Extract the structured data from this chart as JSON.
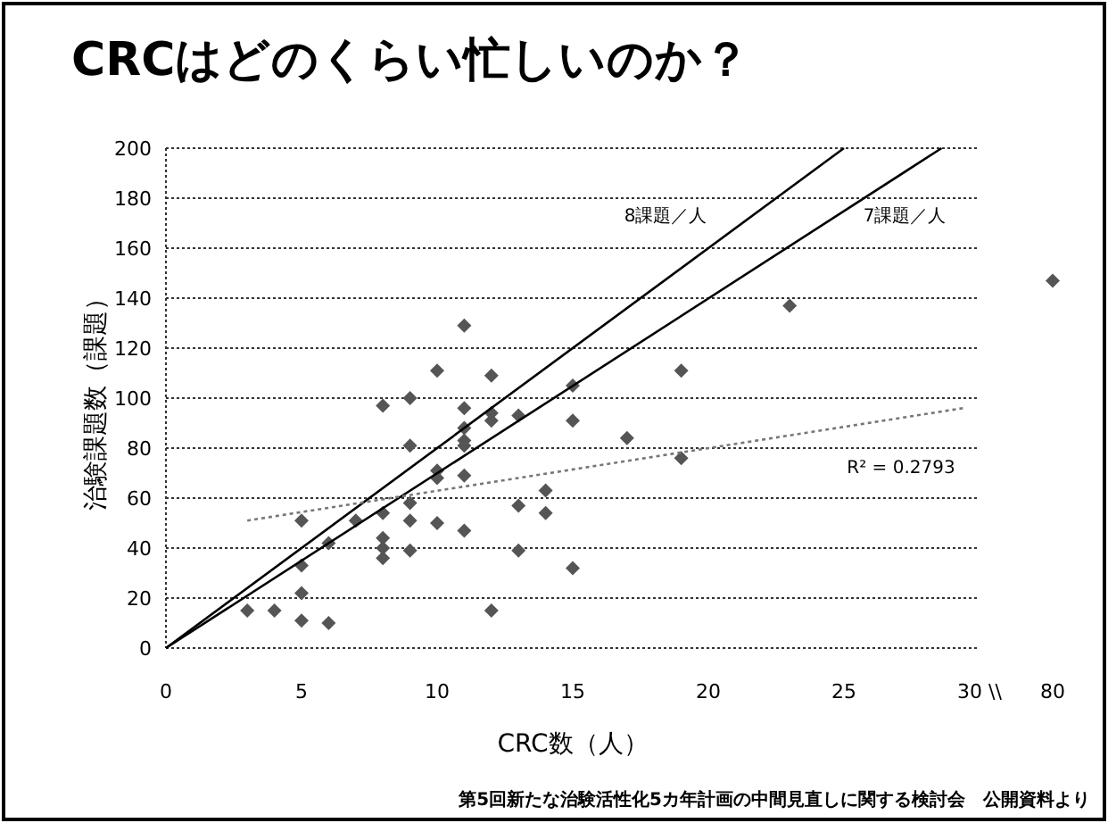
{
  "chart_data": [
    {
      "type": "scatter",
      "title": "CRCはどのくらい忙しいのか？",
      "xlabel": "CRC数（人）",
      "ylabel": "治験課題数（課題）",
      "xlim": [
        0,
        30
      ],
      "xticks": [
        0,
        5,
        10,
        15,
        20,
        25,
        {
          "value": 30,
          "label": "30 \\\\"
        }
      ],
      "ylim": [
        0,
        200
      ],
      "yticks": [
        0,
        20,
        40,
        60,
        80,
        100,
        120,
        140,
        160,
        180,
        200
      ],
      "grid": "y",
      "marker": "diamond",
      "series": [
        {
          "color": "#555555",
          "x": [
            3,
            4,
            5,
            6,
            5,
            5,
            5,
            6,
            7,
            8,
            8,
            8,
            8,
            9,
            9,
            9,
            10,
            10,
            10,
            11,
            11,
            12,
            13,
            13,
            14,
            14,
            15,
            8,
            9,
            10,
            11,
            12,
            9,
            11,
            11,
            11,
            11,
            12,
            12,
            13,
            15,
            15,
            17,
            19,
            19,
            23
          ],
          "values": [
            15,
            15,
            11,
            10,
            22,
            33,
            51,
            42,
            51,
            54,
            44,
            40,
            36,
            39,
            51,
            58,
            50,
            68,
            71,
            47,
            69,
            15,
            57,
            39,
            63,
            54,
            32,
            97,
            100,
            111,
            129,
            109,
            81,
            96,
            88,
            83,
            81,
            94,
            91,
            93,
            105,
            91,
            84,
            111,
            76,
            137
          ]
        },
        {
          "type": "line",
          "color": "#000000",
          "marker": "none",
          "line_style": "solid",
          "x": [
            0,
            25
          ],
          "values": [
            0,
            200
          ]
        },
        {
          "type": "line",
          "color": "#000000",
          "marker": "none",
          "line_style": "solid",
          "x": [
            0,
            28.6
          ],
          "values": [
            0,
            200
          ]
        },
        {
          "type": "line",
          "color": "#777777",
          "marker": "none",
          "line_style": "dotted",
          "x": [
            3,
            29.4
          ],
          "values": [
            51,
            96
          ]
        }
      ],
      "annotations": [
        "8課題／人",
        "7課題／人",
        "R² = 0.2793",
        "第5回新たな治験活性化5カ年計画の中間見直しに関する検討会　公開資料より"
      ]
    },
    {
      "type": "scatter",
      "categories": [
        "80"
      ],
      "ylim": [
        0,
        200
      ],
      "tick_labels": "x",
      "marker": "diamond",
      "series": [
        {
          "color": "#555555",
          "values": [
            147
          ]
        }
      ]
    }
  ]
}
